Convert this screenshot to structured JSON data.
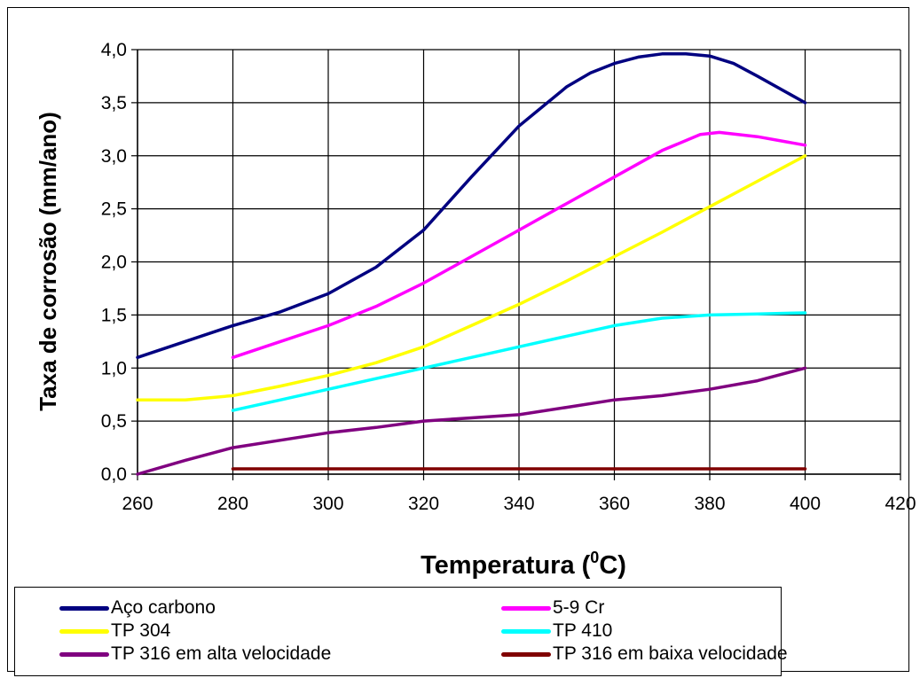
{
  "chart_data": {
    "type": "line",
    "xlabel": "Temperatura (",
    "xlabel_sup": "0",
    "xlabel_tail": "C)",
    "ylabel": "Taxa de corrosão (mm/ano)",
    "xlim": [
      260,
      420
    ],
    "ylim": [
      0,
      4
    ],
    "grid": true,
    "legend_placement": "bottom",
    "x_ticks": [
      "260",
      "280",
      "300",
      "320",
      "340",
      "360",
      "380",
      "400",
      "420"
    ],
    "y_ticks": [
      "0,0",
      "0,5",
      "1,0",
      "1,5",
      "2,0",
      "2,5",
      "3,0",
      "3,5",
      "4,0"
    ],
    "series": [
      {
        "name": "Aço carbono",
        "color": "#000080",
        "points": [
          [
            260,
            1.1
          ],
          [
            270,
            1.25
          ],
          [
            280,
            1.4
          ],
          [
            290,
            1.53
          ],
          [
            300,
            1.7
          ],
          [
            310,
            1.95
          ],
          [
            320,
            2.3
          ],
          [
            330,
            2.8
          ],
          [
            340,
            3.28
          ],
          [
            350,
            3.65
          ],
          [
            355,
            3.78
          ],
          [
            360,
            3.87
          ],
          [
            365,
            3.93
          ],
          [
            370,
            3.96
          ],
          [
            375,
            3.96
          ],
          [
            380,
            3.94
          ],
          [
            385,
            3.87
          ],
          [
            390,
            3.75
          ],
          [
            400,
            3.5
          ]
        ]
      },
      {
        "name": "5-9 Cr",
        "color": "#ff00ff",
        "points": [
          [
            280,
            1.1
          ],
          [
            290,
            1.25
          ],
          [
            300,
            1.4
          ],
          [
            310,
            1.58
          ],
          [
            320,
            1.8
          ],
          [
            330,
            2.05
          ],
          [
            340,
            2.3
          ],
          [
            350,
            2.55
          ],
          [
            360,
            2.8
          ],
          [
            370,
            3.05
          ],
          [
            378,
            3.2
          ],
          [
            382,
            3.22
          ],
          [
            390,
            3.18
          ],
          [
            400,
            3.1
          ]
        ]
      },
      {
        "name": "TP 304",
        "color": "#ffff00",
        "points": [
          [
            260,
            0.7
          ],
          [
            270,
            0.7
          ],
          [
            280,
            0.74
          ],
          [
            290,
            0.83
          ],
          [
            300,
            0.93
          ],
          [
            310,
            1.05
          ],
          [
            320,
            1.2
          ],
          [
            330,
            1.4
          ],
          [
            340,
            1.6
          ],
          [
            350,
            1.82
          ],
          [
            360,
            2.05
          ],
          [
            370,
            2.28
          ],
          [
            380,
            2.52
          ],
          [
            390,
            2.76
          ],
          [
            400,
            3.0
          ]
        ]
      },
      {
        "name": "TP 410",
        "color": "#00ffff",
        "points": [
          [
            280,
            0.6
          ],
          [
            290,
            0.7
          ],
          [
            300,
            0.8
          ],
          [
            310,
            0.9
          ],
          [
            320,
            1.0
          ],
          [
            330,
            1.1
          ],
          [
            340,
            1.2
          ],
          [
            350,
            1.3
          ],
          [
            360,
            1.4
          ],
          [
            370,
            1.47
          ],
          [
            380,
            1.5
          ],
          [
            390,
            1.51
          ],
          [
            400,
            1.52
          ]
        ]
      },
      {
        "name": "TP 316 em alta velocidade",
        "color": "#800080",
        "points": [
          [
            260,
            0.0
          ],
          [
            270,
            0.13
          ],
          [
            280,
            0.25
          ],
          [
            290,
            0.32
          ],
          [
            300,
            0.39
          ],
          [
            310,
            0.44
          ],
          [
            320,
            0.5
          ],
          [
            330,
            0.53
          ],
          [
            340,
            0.56
          ],
          [
            350,
            0.63
          ],
          [
            360,
            0.7
          ],
          [
            370,
            0.74
          ],
          [
            380,
            0.8
          ],
          [
            390,
            0.88
          ],
          [
            400,
            1.0
          ]
        ]
      },
      {
        "name": "TP 316 em baixa velocidade",
        "color": "#800000",
        "points": [
          [
            280,
            0.05
          ],
          [
            400,
            0.05
          ]
        ]
      }
    ]
  }
}
